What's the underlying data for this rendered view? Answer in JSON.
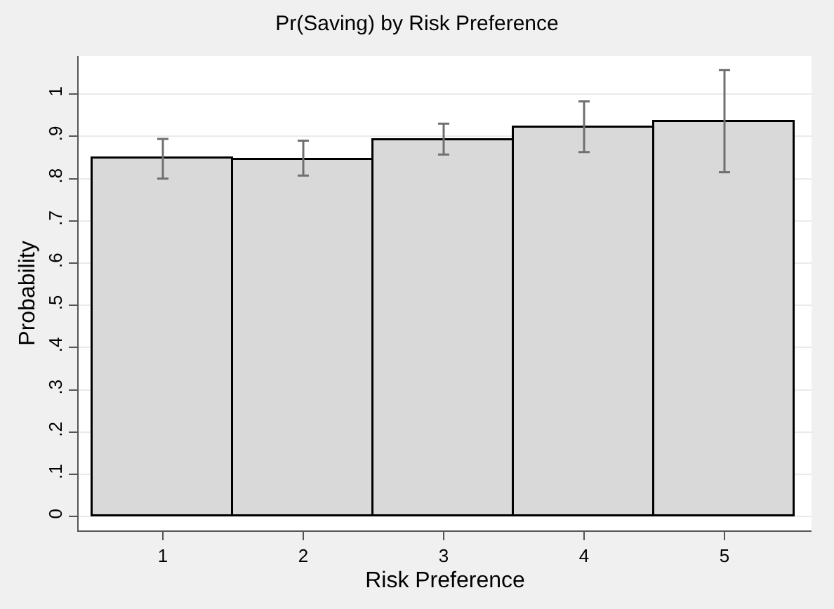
{
  "chart_data": {
    "type": "bar",
    "title": "Pr(Saving) by Risk Preference",
    "xlabel": "Risk Preference",
    "ylabel": "Probability",
    "x": [
      1,
      2,
      3,
      4,
      5
    ],
    "series": [
      {
        "color": "#d9d9d9",
        "values": [
          0.846,
          0.845,
          0.891,
          0.921,
          0.933
        ],
        "errors": [
          [
            0.8,
            0.894
          ],
          [
            0.807,
            0.89
          ],
          [
            0.857,
            0.93
          ],
          [
            0.863,
            0.983
          ],
          [
            0.815,
            1.057
          ]
        ]
      }
    ],
    "xlim": [
      0.4,
      5.62
    ],
    "xticks": [
      1,
      2,
      3,
      4,
      5
    ],
    "ylim": [
      -0.033,
      1.09
    ],
    "yticks": [
      0,
      {
        "value": 0.1,
        "label": ".1"
      },
      {
        "value": 0.2,
        "label": ".2"
      },
      {
        "value": 0.3,
        "label": ".3"
      },
      {
        "value": 0.4,
        "label": ".4"
      },
      {
        "value": 0.5,
        "label": ".5"
      },
      {
        "value": 0.6,
        "label": ".6"
      },
      {
        "value": 0.7,
        "label": ".7"
      },
      {
        "value": 0.8,
        "label": ".8"
      },
      {
        "value": 0.9,
        "label": ".9"
      },
      1
    ],
    "grid": "y"
  }
}
